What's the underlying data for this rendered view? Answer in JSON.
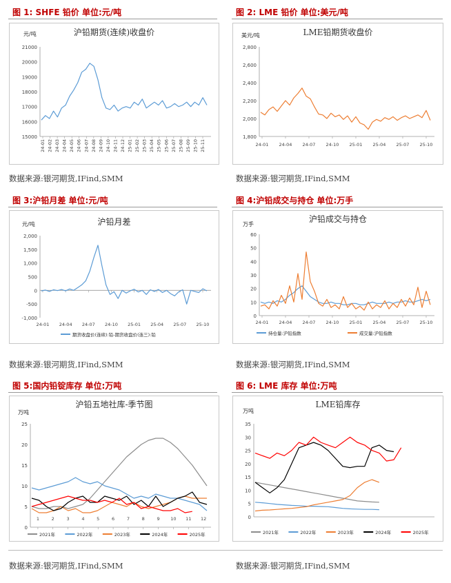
{
  "figures": [
    {
      "label": "图 1:  SHFE 铅价   单位:元/吨"
    },
    {
      "label": "图 2:  LME 铅价   单位:美元/吨"
    },
    {
      "label": "图 3:沪铅月差   单位:元/吨"
    },
    {
      "label": "图 4:沪铅成交与持仓   单位:万手"
    },
    {
      "label": "图 5:国内铅锭库存   单位:万吨"
    },
    {
      "label": "图 6:  LME 库存   单位:万吨"
    }
  ],
  "source": "数据来源:银河期货,IFind,SMM",
  "colors": {
    "title": "#c00000",
    "blue": "#5b9bd5",
    "orange": "#ed7d31",
    "gray": "#8c8c8c",
    "black": "#000000",
    "red": "#ff0000"
  },
  "chart_data": [
    {
      "type": "line",
      "title": "沪铅期货(连续)收盘价",
      "unit": "元/吨",
      "ylim": [
        15000,
        21000
      ],
      "yticks": [
        "15000",
        "16000",
        "17000",
        "18000",
        "19000",
        "20000",
        "21000"
      ],
      "xticks": [
        "24-01",
        "24-02",
        "24-03",
        "24-04",
        "24-05",
        "24-06",
        "24-07",
        "24-08",
        "24-09",
        "24-10",
        "24-11",
        "24-12",
        "25-01",
        "25-02",
        "25-03",
        "25-04",
        "25-05",
        "25-06",
        "25-07",
        "25-08",
        "25-09",
        "25-10",
        "25-11"
      ],
      "series": [
        {
          "name": "沪铅期货(连续)收盘价",
          "color": "#5b9bd5",
          "values": [
            16100,
            16400,
            16200,
            16700,
            16300,
            16900,
            17100,
            17700,
            18100,
            18600,
            19300,
            19500,
            19900,
            19700,
            18800,
            17600,
            16900,
            16800,
            17100,
            16700,
            16900,
            17000,
            16900,
            17300,
            17100,
            17500,
            16900,
            17100,
            17300,
            17100,
            17400,
            16900,
            17000,
            17200,
            17000,
            17100,
            17300,
            17000,
            17300,
            17100,
            17600,
            17100
          ]
        }
      ]
    },
    {
      "type": "line",
      "title": "LME铅期货收盘价",
      "unit": "美元/吨",
      "ylim": [
        1800,
        2800
      ],
      "yticks": [
        "1,800",
        "2,000",
        "2,200",
        "2,400",
        "2,600",
        "2,800"
      ],
      "xticks": [
        "24-01",
        "24-04",
        "24-07",
        "24-10",
        "25-01",
        "25-04",
        "25-07",
        "25-10"
      ],
      "series": [
        {
          "name": "LME铅期货收盘价",
          "color": "#ed7d31",
          "values": [
            2070,
            2040,
            2100,
            2130,
            2080,
            2140,
            2200,
            2150,
            2230,
            2280,
            2340,
            2250,
            2220,
            2130,
            2050,
            2040,
            2000,
            2060,
            2020,
            2040,
            1990,
            2030,
            1960,
            2020,
            1950,
            1930,
            1880,
            1960,
            1990,
            1970,
            2010,
            1990,
            2020,
            1980,
            2010,
            2030,
            2000,
            2020,
            2040,
            2010,
            2090,
            1980
          ]
        }
      ]
    },
    {
      "type": "line",
      "title": "沪铅月差",
      "unit": "元/吨",
      "ylim": [
        -1000,
        2000
      ],
      "yticks": [
        "-1,000",
        "-500",
        "0",
        "500",
        "1,000",
        "1,500",
        "2,000"
      ],
      "xticks": [
        "24-01",
        "24-04",
        "24-07",
        "24-10",
        "25-01",
        "25-04",
        "25-07",
        "25-10"
      ],
      "legend": [
        "期货收盘价(连续):铅-期货收盘价(连三):铅"
      ],
      "series": [
        {
          "name": "期货收盘价(连续):铅-期货收盘价(连三):铅",
          "color": "#5b9bd5",
          "values": [
            -20,
            10,
            -40,
            20,
            -10,
            30,
            -20,
            50,
            0,
            100,
            200,
            350,
            700,
            1200,
            1650,
            900,
            200,
            -150,
            -50,
            -300,
            0,
            -100,
            -20,
            40,
            -60,
            0,
            -150,
            20,
            -40,
            30,
            -80,
            0,
            -120,
            -200,
            -60,
            20,
            -500,
            0,
            -40,
            -80,
            60,
            -20
          ]
        }
      ]
    },
    {
      "type": "line",
      "title": "沪铅成交与持仓",
      "unit": "万手",
      "ylim": [
        0,
        60
      ],
      "yticks": [
        "0",
        "10",
        "20",
        "30",
        "40",
        "50",
        "60"
      ],
      "xticks": [
        "24-01",
        "24-04",
        "24-07",
        "24-10",
        "25-01",
        "25-04",
        "25-07",
        "25-10"
      ],
      "legend": [
        "持仓量:沪铅指数",
        "成交量:沪铅指数"
      ],
      "series": [
        {
          "name": "持仓量:沪铅指数",
          "color": "#5b9bd5",
          "values": [
            10,
            9,
            10,
            9,
            11,
            10,
            12,
            15,
            17,
            20,
            22,
            18,
            14,
            12,
            10,
            9,
            9,
            10,
            9,
            9,
            8,
            8,
            9,
            9,
            8,
            8,
            9,
            10,
            9,
            9,
            9,
            10,
            9,
            10,
            10,
            11,
            10,
            10,
            11,
            12,
            11,
            12
          ]
        },
        {
          "name": "成交量:沪铅指数",
          "color": "#ed7d31",
          "values": [
            7,
            8,
            5,
            11,
            7,
            15,
            9,
            22,
            10,
            31,
            12,
            47,
            25,
            18,
            9,
            7,
            12,
            6,
            8,
            5,
            14,
            6,
            9,
            5,
            7,
            4,
            10,
            5,
            8,
            6,
            11,
            5,
            9,
            6,
            12,
            7,
            13,
            8,
            21,
            6,
            18,
            8
          ]
        }
      ]
    },
    {
      "type": "line",
      "title": "沪铅五地社库-季节图",
      "unit": "万吨",
      "ylim": [
        0,
        25
      ],
      "yticks": [
        "0",
        "5",
        "10",
        "15",
        "20",
        "25"
      ],
      "xticks": [
        "1",
        "2",
        "3",
        "4",
        "5",
        "6",
        "7",
        "8",
        "9",
        "10",
        "11",
        "12"
      ],
      "legend": [
        "2021年",
        "2022年",
        "2023年",
        "2024年",
        "2025年"
      ],
      "series": [
        {
          "name": "2021年",
          "color": "#8c8c8c",
          "values": [
            5,
            4.5,
            4.5,
            5,
            5,
            4.5,
            5,
            5.5,
            7,
            9,
            11,
            13,
            15,
            17,
            18.5,
            20,
            21,
            21.5,
            21.5,
            20.5,
            19,
            17,
            15,
            12.5,
            10
          ]
        },
        {
          "name": "2022年",
          "color": "#5b9bd5",
          "values": [
            9.5,
            9,
            9.5,
            10,
            10.5,
            11,
            12,
            11,
            10.5,
            11,
            10,
            9.5,
            9,
            8,
            7,
            7.5,
            7,
            8,
            7.5,
            7,
            7,
            6.5,
            6,
            5.5,
            4
          ]
        },
        {
          "name": "2023年",
          "color": "#ed7d31",
          "values": [
            4.5,
            3.5,
            3.5,
            4,
            5,
            4,
            4.5,
            3.5,
            3.5,
            4,
            5,
            6,
            5.5,
            5,
            6,
            5,
            4.5,
            5,
            5.5,
            6,
            7,
            7.5,
            7,
            7,
            7
          ]
        },
        {
          "name": "2024年",
          "color": "#000000",
          "values": [
            7,
            6.5,
            5,
            4,
            4.5,
            6,
            7,
            7.5,
            6,
            6,
            7.5,
            7,
            6.5,
            7.5,
            5.5,
            6.5,
            5,
            7.5,
            5,
            6,
            7,
            7.5,
            8.5,
            6,
            5.5
          ]
        },
        {
          "name": "2025年",
          "color": "#ff0000",
          "values": [
            5,
            5.5,
            6,
            6.5,
            7,
            7.5,
            7,
            6.5,
            6.5,
            6,
            6.5,
            6,
            7,
            5.5,
            6,
            4.5,
            5,
            4.5,
            4,
            4,
            4.5,
            3.5,
            3.8,
            null,
            null
          ]
        }
      ]
    },
    {
      "type": "line",
      "title": "LME铅库存",
      "unit": "万吨",
      "ylim": [
        0,
        35
      ],
      "yticks": [
        "0",
        "5",
        "10",
        "15",
        "20",
        "25",
        "30",
        "35"
      ],
      "xticks": [],
      "legend": [
        "2021年",
        "2022年",
        "2023年",
        "2024年",
        "2025年"
      ],
      "series": [
        {
          "name": "2021年",
          "color": "#8c8c8c",
          "values": [
            13,
            12.5,
            12,
            11.5,
            11,
            10.5,
            10,
            9.5,
            9,
            8.5,
            8,
            7.5,
            7,
            6.5,
            6,
            5.8,
            5.6,
            5.5
          ]
        },
        {
          "name": "2022年",
          "color": "#5b9bd5",
          "values": [
            5.5,
            5.3,
            5,
            4.7,
            4.5,
            4.3,
            4.2,
            4,
            4,
            3.9,
            3.8,
            3.5,
            3.2,
            3,
            2.9,
            2.8,
            2.8,
            2.7
          ]
        },
        {
          "name": "2023年",
          "color": "#ed7d31",
          "values": [
            2.2,
            2.5,
            2.6,
            2.8,
            3,
            3.2,
            3.5,
            3.8,
            4.5,
            5,
            5.5,
            6,
            6.5,
            8,
            11,
            13,
            14,
            13
          ]
        },
        {
          "name": "2024年",
          "color": "#000000",
          "values": [
            13,
            11,
            9,
            11,
            14,
            20,
            26,
            27,
            28,
            27,
            25,
            22,
            19,
            18.5,
            19,
            19,
            26,
            27,
            25,
            24.5
          ]
        },
        {
          "name": "2025年",
          "color": "#ff0000",
          "values": [
            24,
            23,
            22,
            24,
            23,
            25,
            28,
            27,
            30,
            28,
            27,
            26,
            28,
            30,
            28,
            27,
            25,
            24,
            21,
            21.5,
            26
          ]
        }
      ]
    }
  ]
}
